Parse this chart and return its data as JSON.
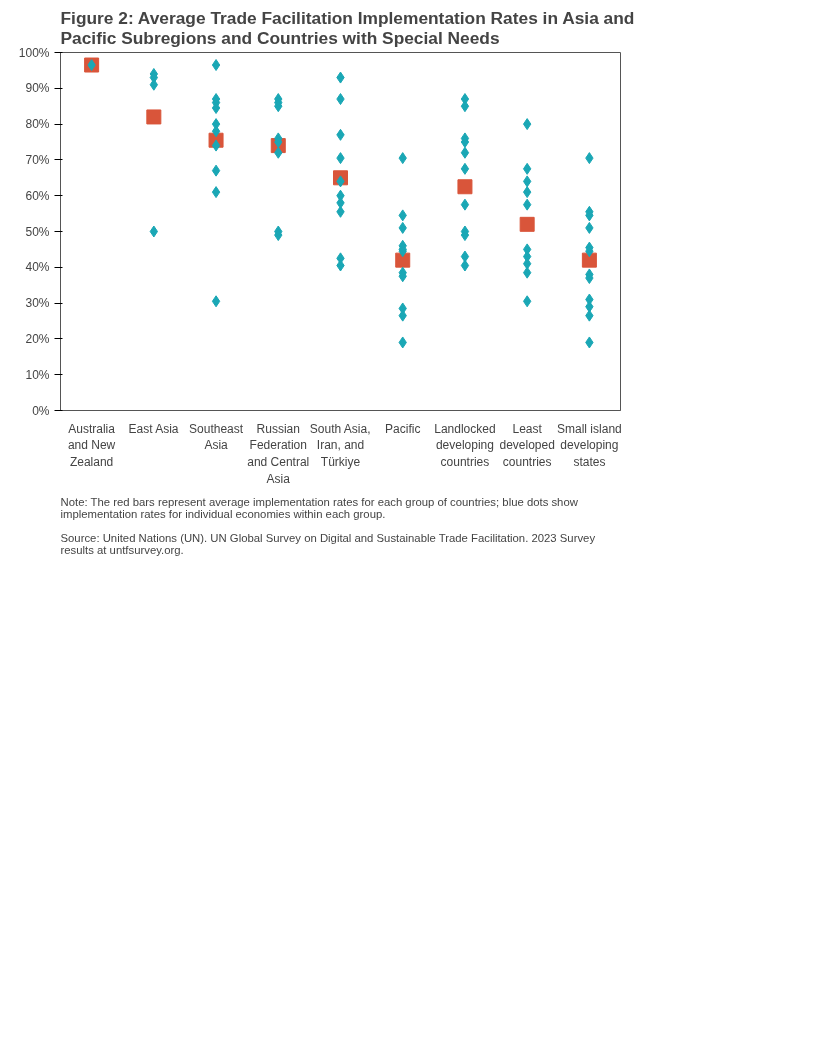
{
  "chart_data": {
    "type": "scatter",
    "title": "Figure 2: Average Trade Facilitation Implementation Rates in Asia and Pacific Subregions and Countries with Special Needs",
    "categories": [
      "Australia and New Zealand",
      "East Asia",
      "Southeast Asia",
      "Russian Federation and Central Asia",
      "South Asia, Iran, and Türkiye",
      "Pacific",
      "Landlocked developing countries",
      "Least developed countries",
      "Small island developing states"
    ],
    "series": [
      {
        "marker": "diamond",
        "color": "#1aa7b5",
        "x": [
          "Australia and New Zealand",
          "East Asia",
          "East Asia",
          "East Asia",
          "East Asia",
          "Southeast Asia",
          "Southeast Asia",
          "Southeast Asia",
          "Southeast Asia",
          "Southeast Asia",
          "Southeast Asia",
          "Southeast Asia",
          "Southeast Asia",
          "Southeast Asia",
          "Southeast Asia",
          "Russian Federation and Central Asia",
          "Russian Federation and Central Asia",
          "Russian Federation and Central Asia",
          "Russian Federation and Central Asia",
          "Russian Federation and Central Asia",
          "Russian Federation and Central Asia",
          "Russian Federation and Central Asia",
          "Russian Federation and Central Asia",
          "South Asia, Iran, and Türkiye",
          "South Asia, Iran, and Türkiye",
          "South Asia, Iran, and Türkiye",
          "South Asia, Iran, and Türkiye",
          "South Asia, Iran, and Türkiye",
          "South Asia, Iran, and Türkiye",
          "South Asia, Iran, and Türkiye",
          "South Asia, Iran, and Türkiye",
          "South Asia, Iran, and Türkiye",
          "South Asia, Iran, and Türkiye",
          "Pacific",
          "Pacific",
          "Pacific",
          "Pacific",
          "Pacific",
          "Pacific",
          "Pacific",
          "Pacific",
          "Pacific",
          "Pacific",
          "Pacific",
          "Landlocked developing countries",
          "Landlocked developing countries",
          "Landlocked developing countries",
          "Landlocked developing countries",
          "Landlocked developing countries",
          "Landlocked developing countries",
          "Landlocked developing countries",
          "Landlocked developing countries",
          "Landlocked developing countries",
          "Landlocked developing countries",
          "Landlocked developing countries",
          "Least developed countries",
          "Least developed countries",
          "Least developed countries",
          "Least developed countries",
          "Least developed countries",
          "Least developed countries",
          "Least developed countries",
          "Least developed countries",
          "Least developed countries",
          "Least developed countries",
          "Small island developing states",
          "Small island developing states",
          "Small island developing states",
          "Small island developing states",
          "Small island developing states",
          "Small island developing states",
          "Small island developing states",
          "Small island developing states",
          "Small island developing states",
          "Small island developing states",
          "Small island developing states",
          "Small island developing states"
        ],
        "values": [
          96.5,
          94,
          93,
          91,
          50,
          96.5,
          87,
          86,
          84.5,
          80,
          78,
          74,
          67,
          61,
          30.5,
          87,
          86,
          85,
          76,
          75,
          72,
          50,
          49,
          93,
          87,
          77,
          70.5,
          64,
          60,
          58,
          55.5,
          42.5,
          40.5,
          70.5,
          54.5,
          51,
          46,
          45,
          44.5,
          38.5,
          37.5,
          28.5,
          26.5,
          19,
          87,
          85,
          76,
          75,
          72,
          67.5,
          57.5,
          50,
          49,
          43,
          40.5,
          80,
          67.5,
          64,
          61,
          57.5,
          45,
          43,
          41,
          38.5,
          30.5,
          70.5,
          55.5,
          54.5,
          51,
          45.5,
          44.5,
          38,
          37,
          31,
          29,
          26.5,
          19
        ]
      },
      {
        "marker": "square",
        "color": "#d9553a",
        "x": [
          "Australia and New Zealand",
          "East Asia",
          "Southeast Asia",
          "Russian Federation and Central Asia",
          "South Asia, Iran, and Türkiye",
          "Pacific",
          "Landlocked developing countries",
          "Least developed countries",
          "Small island developing states"
        ],
        "values": [
          96.5,
          82,
          75.5,
          74,
          65,
          42,
          62.5,
          52,
          42
        ]
      }
    ],
    "ylim": [
      0,
      100
    ],
    "yticks": [
      {
        "value": 0,
        "label": "0%"
      },
      {
        "value": 10,
        "label": "10%"
      },
      {
        "value": 20,
        "label": "20%"
      },
      {
        "value": 30,
        "label": "30%"
      },
      {
        "value": 40,
        "label": "40%"
      },
      {
        "value": 50,
        "label": "50%"
      },
      {
        "value": 60,
        "label": "60%"
      },
      {
        "value": 70,
        "label": "70%"
      },
      {
        "value": 80,
        "label": "80%"
      },
      {
        "value": 90,
        "label": "90%"
      },
      {
        "value": 100,
        "label": "100%"
      }
    ],
    "grid": false,
    "annotations": [
      "Note: The red bars represent average implementation rates for each group of countries; blue dots show implementation rates for individual economies within each group.",
      "Source: United Nations (UN). UN Global Survey on Digital and Sustainable Trade Facilitation. 2023 Survey results at untfsurvey.org."
    ]
  }
}
